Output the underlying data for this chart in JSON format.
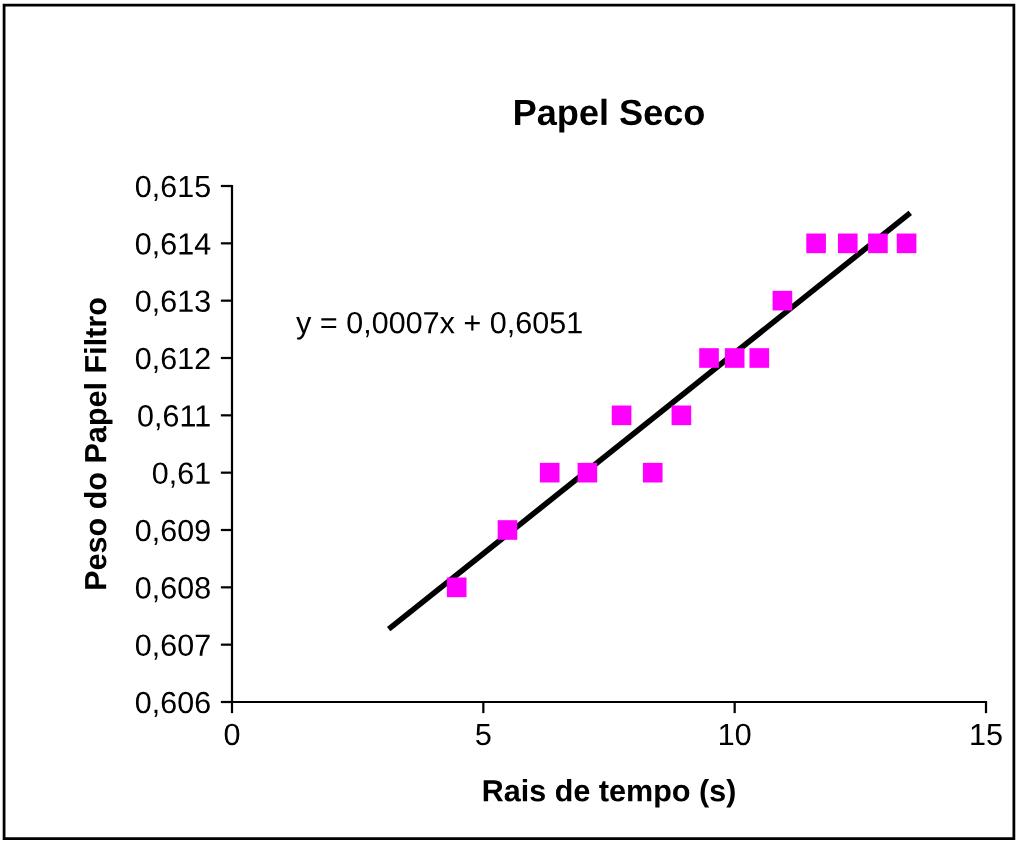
{
  "chart_data": {
    "type": "scatter",
    "title": "Papel Seco",
    "xlabel": "Rais de tempo (s)",
    "ylabel": "Peso do Papel Filtro",
    "x": [
      4.47,
      5.48,
      6.32,
      7.07,
      7.75,
      8.37,
      8.94,
      9.49,
      10.0,
      10.49,
      10.95,
      11.62,
      12.25,
      12.85,
      13.42
    ],
    "series": [
      {
        "color": "#ff00ff",
        "marker": "square",
        "values": [
          0.608,
          0.609,
          0.61,
          0.61,
          0.611,
          0.61,
          0.611,
          0.612,
          0.612,
          0.612,
          0.613,
          0.614,
          0.614,
          0.614,
          0.614
        ]
      },
      {
        "type": "line",
        "color": "#000000",
        "x": [
          3.16,
          13.45
        ],
        "values": [
          0.6073,
          0.6145
        ]
      }
    ],
    "annotations": [
      "y = 0,0007x + 0,6051"
    ],
    "xlim": [
      0,
      15
    ],
    "xticks": [
      0,
      5,
      10,
      15
    ],
    "ylim": [
      0.606,
      0.615
    ],
    "yticks": [
      {
        "value": 0.606,
        "label": "0,606"
      },
      {
        "value": 0.607,
        "label": "0,607"
      },
      {
        "value": 0.608,
        "label": "0,608"
      },
      {
        "value": 0.609,
        "label": "0,609"
      },
      {
        "value": 0.61,
        "label": "0,61"
      },
      {
        "value": 0.611,
        "label": "0,611"
      },
      {
        "value": 0.612,
        "label": "0,612"
      },
      {
        "value": 0.613,
        "label": "0,613"
      },
      {
        "value": 0.614,
        "label": "0,614"
      },
      {
        "value": 0.615,
        "label": "0,615"
      }
    ],
    "grid": false,
    "legend": false
  }
}
